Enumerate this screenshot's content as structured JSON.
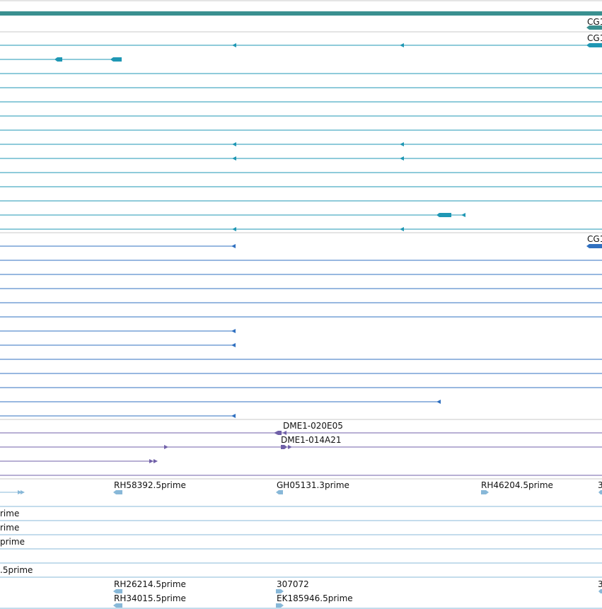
{
  "tracks": [
    {
      "name": "gene-models-top",
      "color": "#3a9090",
      "labels": [
        "CG1"
      ]
    },
    {
      "name": "transcripts-teal",
      "color": "#1f97b4",
      "labels": [
        "CG1"
      ]
    },
    {
      "name": "transcripts-blue",
      "color": "#3070c0",
      "labels": [
        "CG1"
      ]
    },
    {
      "name": "clones-purple",
      "color": "#7060a8",
      "labels": [
        "DME1-020E05",
        "DME1-014A21"
      ]
    },
    {
      "name": "est-alignments",
      "color": "#88b8d8",
      "labels": [
        "RH58392.5prime",
        "GH05131.3prime",
        "RH46204.5prime",
        "3",
        "rime",
        "rime",
        "prime",
        ".5prime",
        "RH26214.5prime",
        "307072",
        "3",
        "RH34015.5prime",
        "EK185946.5prime"
      ]
    }
  ]
}
